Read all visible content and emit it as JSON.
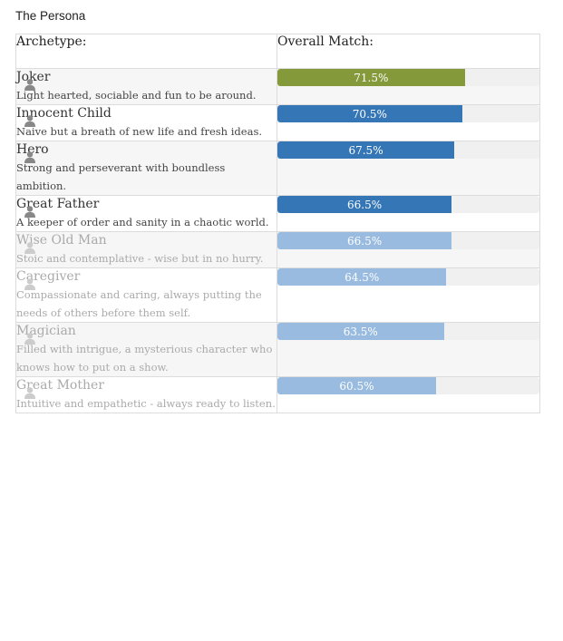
{
  "title": "The Persona",
  "header": {
    "col1": "Archetype:",
    "col2": "Overall Match:"
  },
  "colors": {
    "green": "#849a3a",
    "blue": "#3577b6",
    "light_blue": "#98bbdf",
    "icon_dark": "#888888",
    "icon_faded": "#cccccc"
  },
  "rows": [
    {
      "name": "Joker",
      "desc": "Light hearted, sociable and fun to be around.",
      "pct_label": "71.5%",
      "value": 71.5,
      "color": "green",
      "faded": false,
      "icon": "person-icon"
    },
    {
      "name": "Innocent Child",
      "desc": "Naive but a breath of new life and fresh ideas.",
      "pct_label": "70.5%",
      "value": 70.5,
      "color": "blue",
      "faded": false,
      "icon": "person-icon"
    },
    {
      "name": "Hero",
      "desc": "Strong and perseverant with boundless ambition.",
      "pct_label": "67.5%",
      "value": 67.5,
      "color": "blue",
      "faded": false,
      "icon": "person-icon"
    },
    {
      "name": "Great Father",
      "desc": "A keeper of order and sanity in a chaotic world.",
      "pct_label": "66.5%",
      "value": 66.5,
      "color": "blue",
      "faded": false,
      "icon": "person-icon"
    },
    {
      "name": "Wise Old Man",
      "desc": "Stoic and contemplative - wise but in no hurry.",
      "pct_label": "66.5%",
      "value": 66.5,
      "color": "light_blue",
      "faded": true,
      "icon": "person-icon"
    },
    {
      "name": "Caregiver",
      "desc": "Compassionate and caring, always putting the needs of others before them self.",
      "pct_label": "64.5%",
      "value": 64.5,
      "color": "light_blue",
      "faded": true,
      "icon": "person-icon"
    },
    {
      "name": "Magician",
      "desc": "Filled with intrigue, a mysterious character who knows how to put on a show.",
      "pct_label": "63.5%",
      "value": 63.5,
      "color": "light_blue",
      "faded": true,
      "icon": "person-icon"
    },
    {
      "name": "Great Mother",
      "desc": "Intuitive and empathetic - always ready to listen.",
      "pct_label": "60.5%",
      "value": 60.5,
      "color": "light_blue",
      "faded": true,
      "icon": "person-icon"
    }
  ]
}
